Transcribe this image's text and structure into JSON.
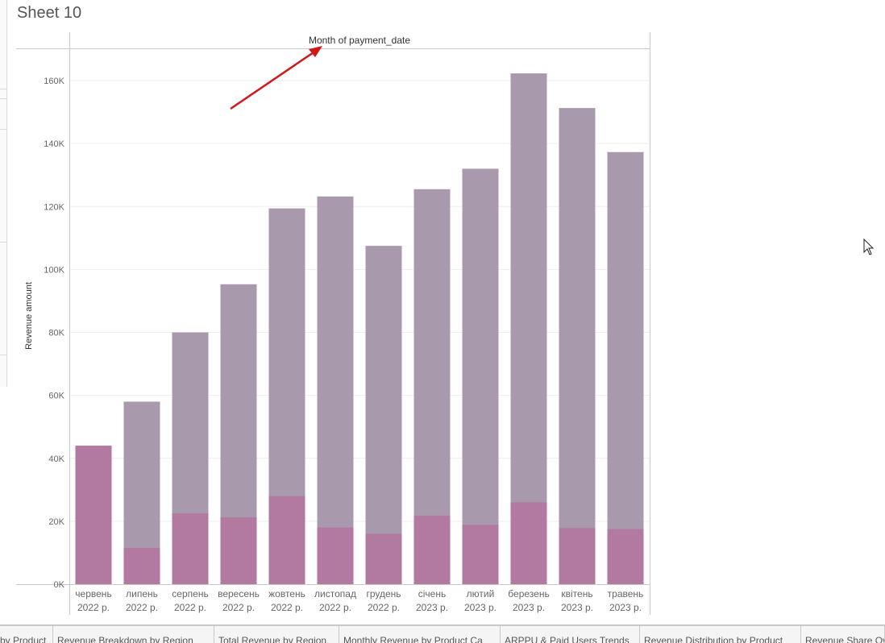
{
  "sheet": {
    "title": "Sheet 10"
  },
  "header": {
    "column_field": "Month of payment_date"
  },
  "tabs": [
    "by Product",
    "Revenue Breakdown by Region",
    "Total Revenue by Region",
    "Monthly Revenue by Product Ca",
    "ARPPU & Paid Users Trends",
    "Revenue Distribution by Product",
    "Revenue Share Ov"
  ],
  "colors": {
    "total": "#a89aac",
    "highlight": "#b27aa1",
    "arrow": "#d01818"
  },
  "chart_data": {
    "type": "bar",
    "ylabel": "Revenue amount",
    "ylim": [
      0,
      170000
    ],
    "yticks": [
      0,
      20000,
      40000,
      60000,
      80000,
      100000,
      120000,
      140000,
      160000
    ],
    "ytick_labels": [
      "0K",
      "20K",
      "40K",
      "60K",
      "80K",
      "100K",
      "120K",
      "140K",
      "160K"
    ],
    "categories": [
      [
        "червень",
        "2022 р."
      ],
      [
        "липень",
        "2022 р."
      ],
      [
        "серпень",
        "2022 р."
      ],
      [
        "вересень",
        "2022 р."
      ],
      [
        "жовтень",
        "2022 р."
      ],
      [
        "листопад",
        "2022 р."
      ],
      [
        "грудень",
        "2022 р."
      ],
      [
        "січень",
        "2023 р."
      ],
      [
        "лютий",
        "2023 р."
      ],
      [
        "березень",
        "2023 р."
      ],
      [
        "квітень",
        "2023 р."
      ],
      [
        "травень",
        "2023 р."
      ]
    ],
    "series": [
      {
        "values": [
          44000,
          58000,
          80000,
          95300,
          119400,
          123200,
          107500,
          125500,
          132000,
          162300,
          151300,
          137300
        ]
      },
      {
        "values": [
          44000,
          11500,
          22500,
          21200,
          28000,
          18000,
          16000,
          21800,
          18900,
          26000,
          17800,
          17500
        ]
      }
    ]
  }
}
